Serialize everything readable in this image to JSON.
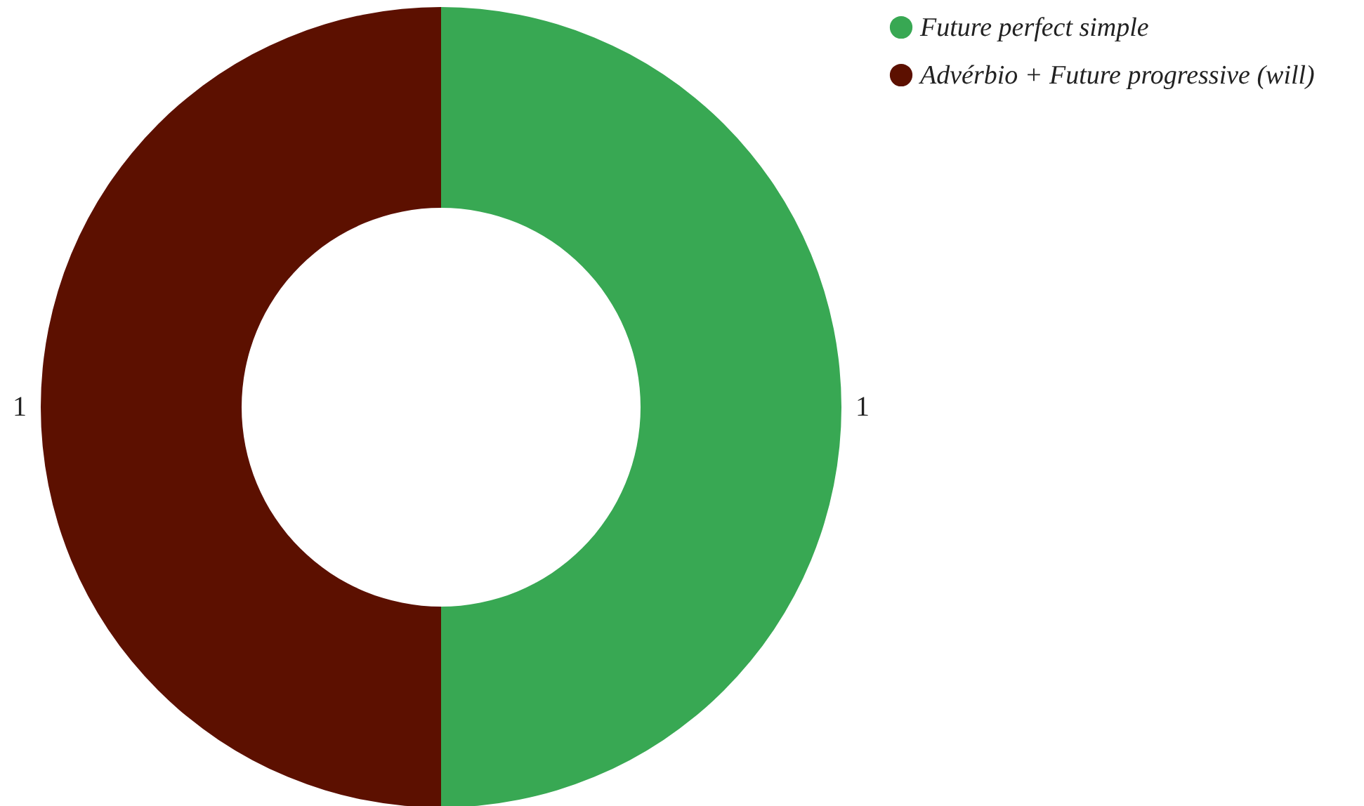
{
  "chart_data": {
    "type": "donut",
    "categories": [
      "Future perfect simple",
      "Advérbio + Future progressive (will)"
    ],
    "values": [
      1,
      1
    ],
    "colors": [
      "#38a853",
      "#5c1000"
    ],
    "data_labels": true,
    "legend": "top right"
  }
}
